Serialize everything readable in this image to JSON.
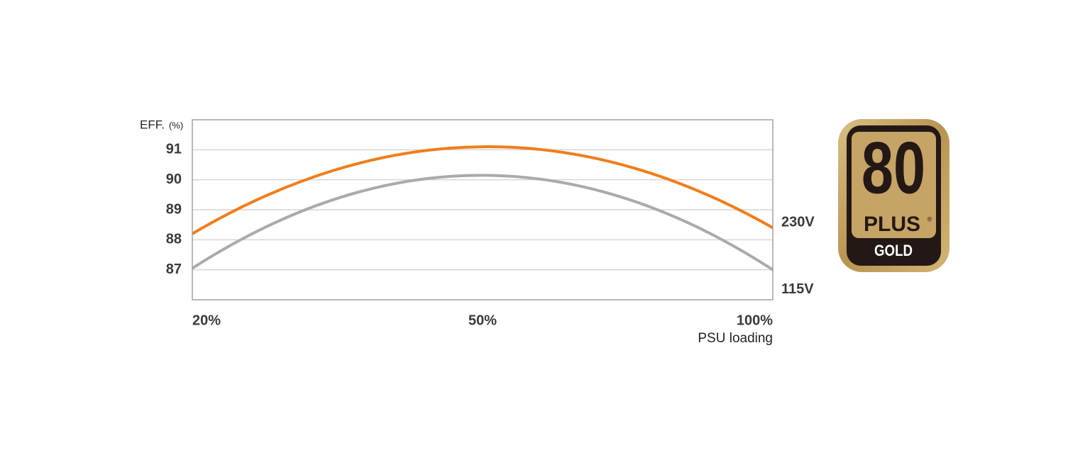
{
  "chart_data": {
    "type": "line",
    "y_label": "EFF.",
    "y_unit": "(%)",
    "x_label": "PSU loading",
    "categories": [
      "20%",
      "50%",
      "100%"
    ],
    "series": [
      {
        "name": "230V",
        "color": "#f07d1a",
        "values": [
          88.2,
          91.1,
          88.4
        ]
      },
      {
        "name": "115V",
        "color": "#aaaaaa",
        "values": [
          87.05,
          90.15,
          87.0
        ]
      }
    ],
    "ylim": [
      86,
      92
    ],
    "yticks": [
      87,
      88,
      89,
      90,
      91
    ],
    "grid": true
  },
  "badge": {
    "number": "80",
    "brand": "PLUS",
    "mark": "®",
    "level": "GOLD"
  }
}
